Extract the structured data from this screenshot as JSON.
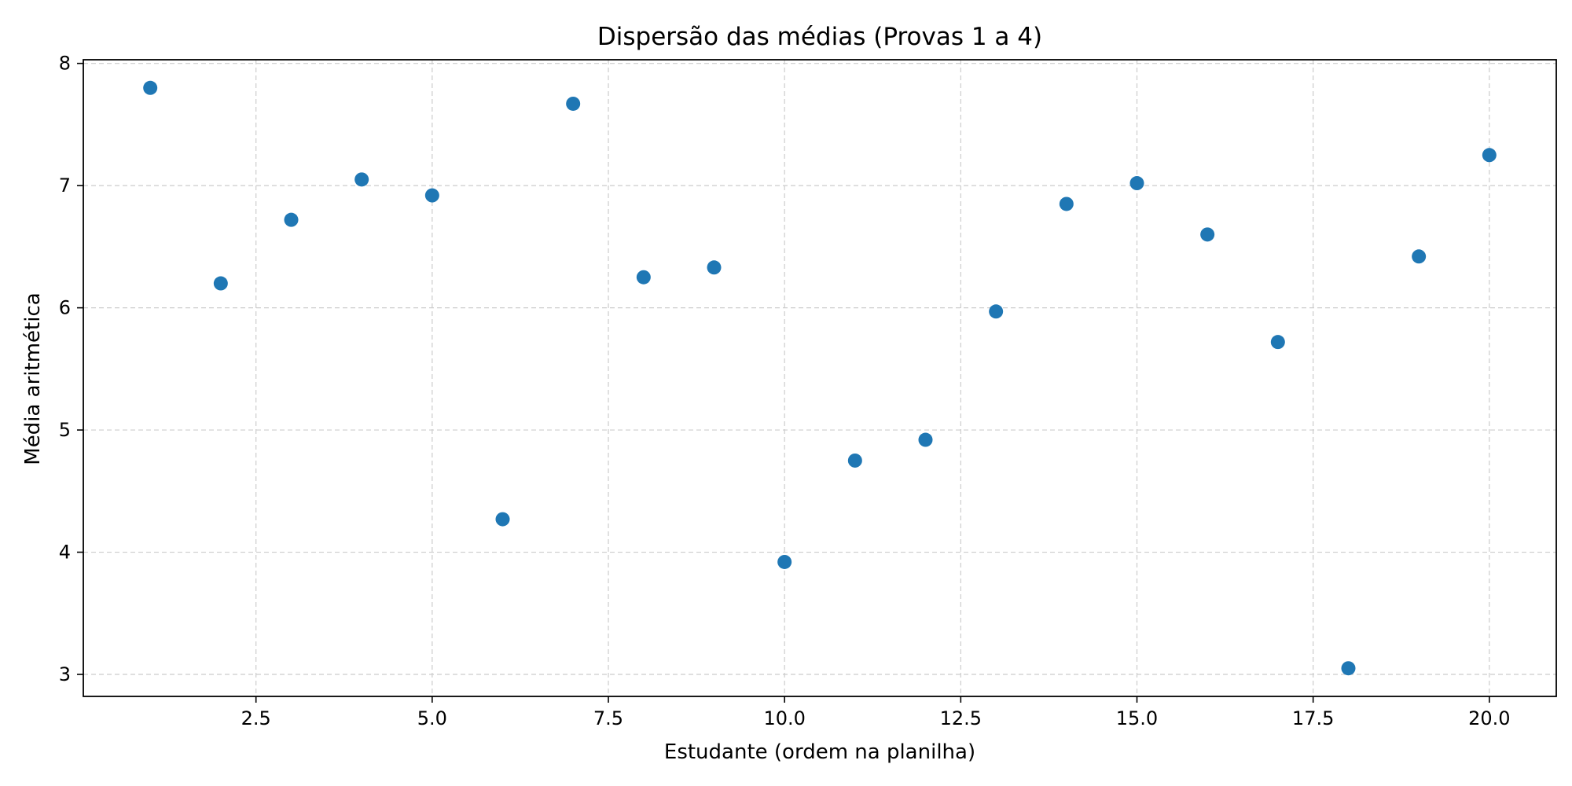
{
  "chart_data": {
    "type": "scatter",
    "title": "Dispersão das médias (Provas 1 a 4)",
    "xlabel": "Estudante (ordem na planilha)",
    "ylabel": "Média aritmética",
    "xlim": [
      0.05,
      20.95
    ],
    "ylim": [
      2.82,
      8.03
    ],
    "xticks": [
      2.5,
      5.0,
      7.5,
      10.0,
      12.5,
      15.0,
      17.5,
      20.0
    ],
    "xtick_labels": [
      "2.5",
      "5.0",
      "7.5",
      "10.0",
      "12.5",
      "15.0",
      "17.5",
      "20.0"
    ],
    "yticks": [
      3,
      4,
      5,
      6,
      7,
      8
    ],
    "ytick_labels": [
      "3",
      "4",
      "5",
      "6",
      "7",
      "8"
    ],
    "grid": true,
    "marker_color": "#1f77b4",
    "x": [
      1,
      2,
      3,
      4,
      5,
      6,
      7,
      8,
      9,
      10,
      11,
      12,
      13,
      14,
      15,
      16,
      17,
      18,
      19,
      20
    ],
    "y": [
      7.8,
      6.2,
      6.72,
      7.05,
      6.92,
      4.27,
      7.67,
      6.25,
      6.33,
      3.92,
      4.75,
      4.92,
      5.97,
      6.85,
      7.02,
      6.6,
      5.72,
      3.05,
      6.42,
      7.25
    ]
  }
}
